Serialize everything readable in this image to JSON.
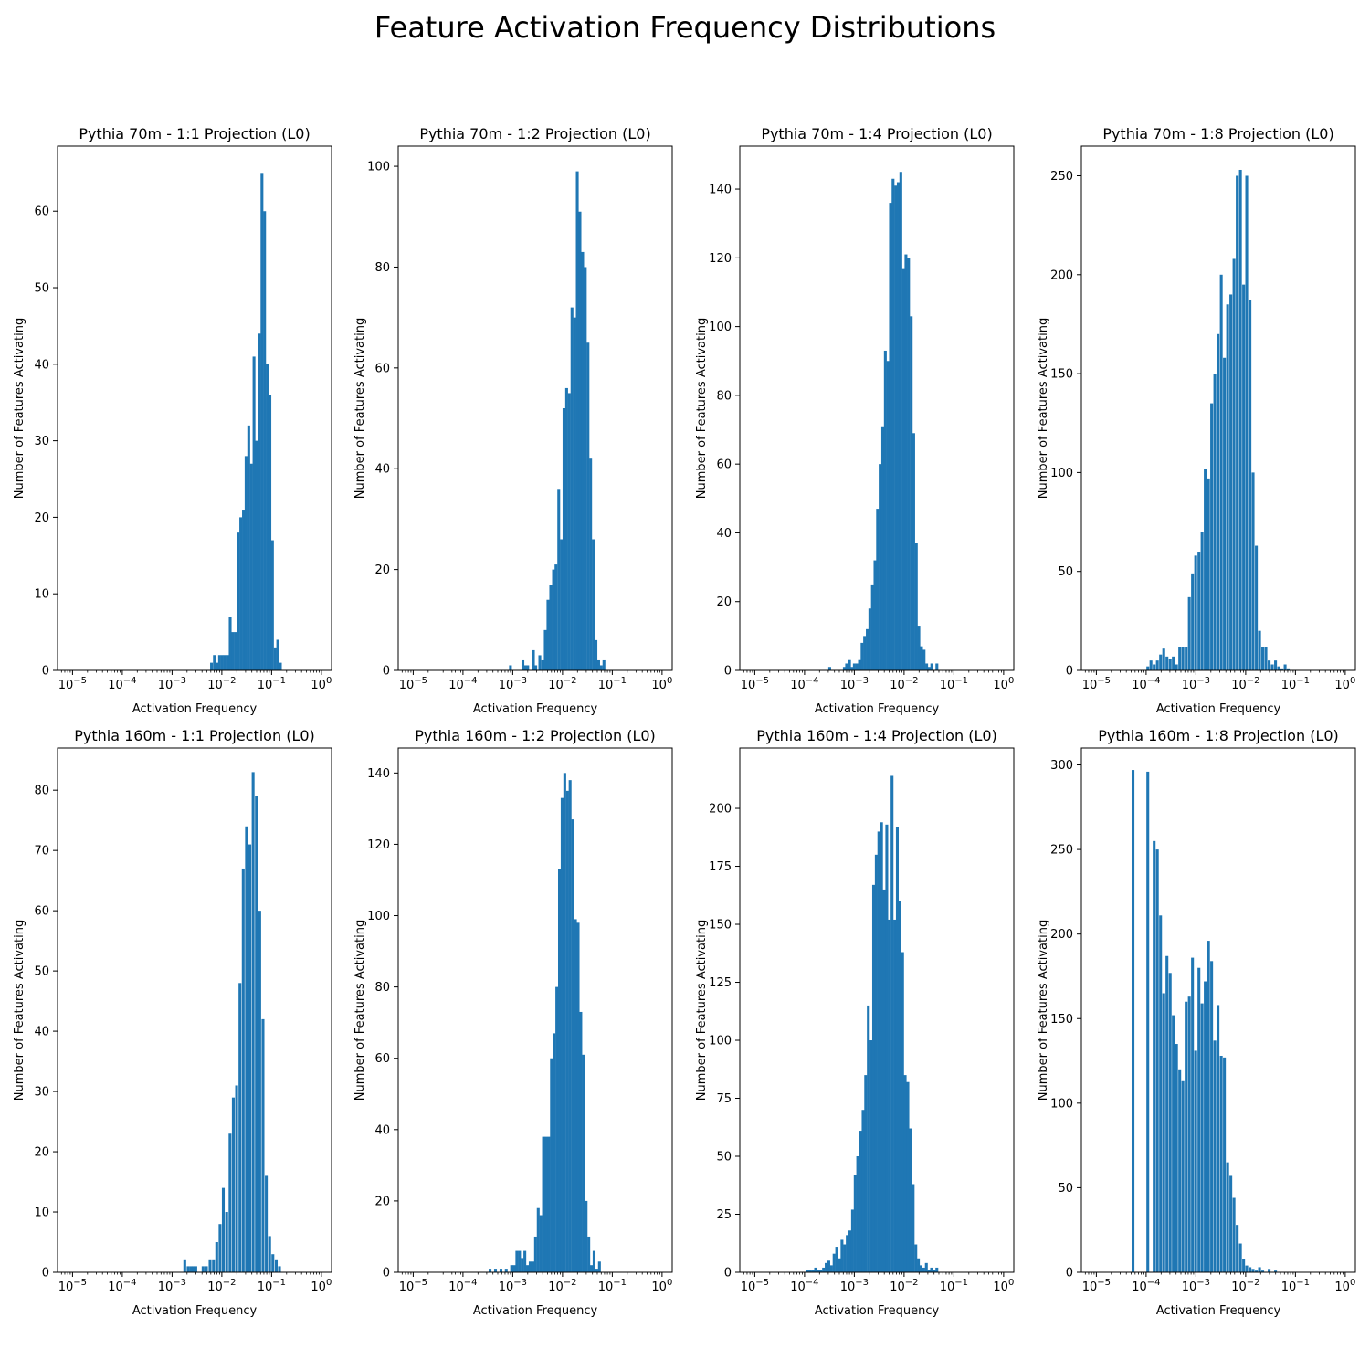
{
  "suptitle": "Feature Activation Frequency Distributions",
  "colors": {
    "bar": "#1f77b4",
    "axes": "#000000"
  },
  "chart_data": [
    {
      "type": "bar",
      "title": "Pythia 70m - 1:1 Projection (L0)",
      "xlabel": "Activation Frequency",
      "ylabel": "Number of Features Activating",
      "xscale": "log",
      "xlim": [
        5e-06,
        1.6
      ],
      "ylim": [
        0,
        68.5
      ],
      "yticks": [
        0,
        10,
        20,
        30,
        40,
        50,
        60
      ],
      "bins": [
        [
          0.0062,
          1
        ],
        [
          0.0071,
          2
        ],
        [
          0.008,
          1
        ],
        [
          0.009,
          2
        ],
        [
          0.0102,
          2
        ],
        [
          0.0115,
          2
        ],
        [
          0.013,
          2
        ],
        [
          0.0147,
          7
        ],
        [
          0.0166,
          5
        ],
        [
          0.0188,
          5
        ],
        [
          0.0212,
          18
        ],
        [
          0.024,
          20
        ],
        [
          0.0272,
          21
        ],
        [
          0.0307,
          28
        ],
        [
          0.0347,
          32
        ],
        [
          0.0392,
          27
        ],
        [
          0.0443,
          41
        ],
        [
          0.05,
          30
        ],
        [
          0.0566,
          44
        ],
        [
          0.064,
          65
        ],
        [
          0.0723,
          60
        ],
        [
          0.0817,
          40
        ],
        [
          0.0924,
          36
        ],
        [
          0.104,
          17
        ],
        [
          0.118,
          3
        ],
        [
          0.133,
          4
        ],
        [
          0.15,
          1
        ]
      ]
    },
    {
      "type": "bar",
      "title": "Pythia 70m - 1:2 Projection (L0)",
      "xlabel": "Activation Frequency",
      "ylabel": "Number of Features Activating",
      "xscale": "log",
      "xlim": [
        5e-06,
        1.6
      ],
      "ylim": [
        0,
        104
      ],
      "yticks": [
        0,
        20,
        40,
        60,
        80,
        100
      ],
      "bins": [
        [
          0.0009,
          1
        ],
        [
          0.0016,
          2
        ],
        [
          0.0018,
          1
        ],
        [
          0.002,
          1
        ],
        [
          0.0026,
          4
        ],
        [
          0.0029,
          1
        ],
        [
          0.0035,
          3
        ],
        [
          0.004,
          2
        ],
        [
          0.0045,
          8
        ],
        [
          0.0051,
          14
        ],
        [
          0.0058,
          17
        ],
        [
          0.0066,
          20
        ],
        [
          0.0074,
          21
        ],
        [
          0.0084,
          36
        ],
        [
          0.0095,
          26
        ],
        [
          0.0107,
          52
        ],
        [
          0.0121,
          56
        ],
        [
          0.0137,
          55
        ],
        [
          0.0155,
          72
        ],
        [
          0.0175,
          70
        ],
        [
          0.0198,
          99
        ],
        [
          0.0224,
          91
        ],
        [
          0.0254,
          83
        ],
        [
          0.0287,
          80
        ],
        [
          0.0325,
          65
        ],
        [
          0.0367,
          42
        ],
        [
          0.0416,
          26
        ],
        [
          0.047,
          6
        ],
        [
          0.0532,
          2
        ],
        [
          0.06,
          1
        ],
        [
          0.068,
          2
        ]
      ]
    },
    {
      "type": "bar",
      "title": "Pythia 70m - 1:4 Projection (L0)",
      "xlabel": "Activation Frequency",
      "ylabel": "Number of Features Activating",
      "xscale": "log",
      "xlim": [
        5e-06,
        1.6
      ],
      "ylim": [
        0,
        152.5
      ],
      "yticks": [
        0,
        20,
        40,
        60,
        80,
        100,
        120,
        140
      ],
      "bins": [
        [
          0.00032,
          1
        ],
        [
          0.00063,
          1
        ],
        [
          0.0007,
          2
        ],
        [
          0.0008,
          3
        ],
        [
          0.0009,
          1
        ],
        [
          0.001,
          2
        ],
        [
          0.00113,
          2
        ],
        [
          0.00127,
          3
        ],
        [
          0.00143,
          8
        ],
        [
          0.00161,
          10
        ],
        [
          0.00182,
          12
        ],
        [
          0.00205,
          18
        ],
        [
          0.00231,
          25
        ],
        [
          0.0026,
          32
        ],
        [
          0.00293,
          47
        ],
        [
          0.0033,
          60
        ],
        [
          0.00372,
          71
        ],
        [
          0.0042,
          93
        ],
        [
          0.00473,
          90
        ],
        [
          0.00533,
          136
        ],
        [
          0.006,
          143
        ],
        [
          0.00677,
          141
        ],
        [
          0.00763,
          142
        ],
        [
          0.0086,
          145
        ],
        [
          0.0097,
          117
        ],
        [
          0.0109,
          121
        ],
        [
          0.0123,
          120
        ],
        [
          0.0139,
          103
        ],
        [
          0.0156,
          69
        ],
        [
          0.0176,
          37
        ],
        [
          0.0198,
          13
        ],
        [
          0.0224,
          7
        ],
        [
          0.0252,
          6
        ],
        [
          0.0284,
          2
        ],
        [
          0.0321,
          1
        ],
        [
          0.036,
          2
        ],
        [
          0.0456,
          2
        ]
      ]
    },
    {
      "type": "bar",
      "title": "Pythia 70m - 1:8 Projection (L0)",
      "xlabel": "Activation Frequency",
      "ylabel": "Number of Features Activating",
      "xscale": "log",
      "xlim": [
        5e-06,
        1.6
      ],
      "ylim": [
        0,
        265
      ],
      "yticks": [
        0,
        50,
        100,
        150,
        200,
        250
      ],
      "bins": [
        [
          0.000108,
          2
        ],
        [
          0.000125,
          5
        ],
        [
          0.000145,
          3
        ],
        [
          0.000168,
          5
        ],
        [
          0.000195,
          8
        ],
        [
          0.000226,
          11
        ],
        [
          0.000262,
          7
        ],
        [
          0.000304,
          6
        ],
        [
          0.000352,
          7
        ],
        [
          0.000408,
          3
        ],
        [
          0.000473,
          12
        ],
        [
          0.000548,
          12
        ],
        [
          0.000636,
          12
        ],
        [
          0.000737,
          37
        ],
        [
          0.000854,
          49
        ],
        [
          0.00099,
          58
        ],
        [
          0.00115,
          60
        ],
        [
          0.00133,
          70
        ],
        [
          0.00154,
          102
        ],
        [
          0.00179,
          97
        ],
        [
          0.00207,
          135
        ],
        [
          0.0024,
          150
        ],
        [
          0.00278,
          170
        ],
        [
          0.00323,
          200
        ],
        [
          0.00374,
          158
        ],
        [
          0.00434,
          185
        ],
        [
          0.00503,
          190
        ],
        [
          0.00583,
          208
        ],
        [
          0.00676,
          250
        ],
        [
          0.00784,
          253
        ],
        [
          0.00909,
          195
        ],
        [
          0.0105,
          250
        ],
        [
          0.0122,
          187
        ],
        [
          0.0141,
          100
        ],
        [
          0.0164,
          63
        ],
        [
          0.019,
          20
        ],
        [
          0.022,
          12
        ],
        [
          0.0255,
          12
        ],
        [
          0.0296,
          5
        ],
        [
          0.0343,
          3
        ],
        [
          0.0398,
          5
        ],
        [
          0.0461,
          2
        ],
        [
          0.0534,
          1
        ],
        [
          0.062,
          3
        ],
        [
          0.0718,
          1
        ]
      ]
    },
    {
      "type": "bar",
      "title": "Pythia 160m - 1:1 Projection (L0)",
      "xlabel": "Activation Frequency",
      "ylabel": "Number of Features Activating",
      "xscale": "log",
      "xlim": [
        5e-06,
        1.6
      ],
      "ylim": [
        0,
        87
      ],
      "yticks": [
        0,
        10,
        20,
        30,
        40,
        50,
        60,
        70,
        80
      ],
      "bins": [
        [
          0.0018,
          2
        ],
        [
          0.0021,
          1
        ],
        [
          0.0024,
          1
        ],
        [
          0.0027,
          1
        ],
        [
          0.003,
          1
        ],
        [
          0.0042,
          1
        ],
        [
          0.0049,
          1
        ],
        [
          0.0058,
          2
        ],
        [
          0.0068,
          2
        ],
        [
          0.0079,
          5
        ],
        [
          0.0092,
          8
        ],
        [
          0.0107,
          14
        ],
        [
          0.0125,
          10
        ],
        [
          0.0146,
          23
        ],
        [
          0.017,
          29
        ],
        [
          0.0198,
          31
        ],
        [
          0.0231,
          48
        ],
        [
          0.0269,
          67
        ],
        [
          0.0313,
          74
        ],
        [
          0.0365,
          71
        ],
        [
          0.0425,
          83
        ],
        [
          0.0495,
          79
        ],
        [
          0.0577,
          60
        ],
        [
          0.0672,
          42
        ],
        [
          0.0783,
          16
        ],
        [
          0.0912,
          6
        ],
        [
          0.106,
          3
        ],
        [
          0.124,
          2
        ],
        [
          0.144,
          1
        ]
      ]
    },
    {
      "type": "bar",
      "title": "Pythia 160m - 1:2 Projection (L0)",
      "xlabel": "Activation Frequency",
      "ylabel": "Number of Features Activating",
      "xscale": "log",
      "xlim": [
        5e-06,
        1.6
      ],
      "ylim": [
        0,
        147
      ],
      "yticks": [
        0,
        20,
        40,
        60,
        80,
        100,
        120,
        140
      ],
      "bins": [
        [
          0.00035,
          1
        ],
        [
          0.00045,
          1
        ],
        [
          0.00058,
          1
        ],
        [
          0.00074,
          1
        ],
        [
          0.00095,
          2
        ],
        [
          0.00107,
          2
        ],
        [
          0.00121,
          6
        ],
        [
          0.00137,
          6
        ],
        [
          0.00155,
          4
        ],
        [
          0.00175,
          6
        ],
        [
          0.00198,
          2
        ],
        [
          0.00224,
          3
        ],
        [
          0.00254,
          3
        ],
        [
          0.00287,
          10
        ],
        [
          0.00325,
          18
        ],
        [
          0.00367,
          16
        ],
        [
          0.00415,
          38
        ],
        [
          0.00469,
          38
        ],
        [
          0.00531,
          38
        ],
        [
          0.006,
          60
        ],
        [
          0.00679,
          67
        ],
        [
          0.00768,
          80
        ],
        [
          0.00868,
          113
        ],
        [
          0.00982,
          133
        ],
        [
          0.0111,
          140
        ],
        [
          0.0126,
          135
        ],
        [
          0.0142,
          138
        ],
        [
          0.0161,
          127
        ],
        [
          0.0182,
          99
        ],
        [
          0.0206,
          98
        ],
        [
          0.0233,
          73
        ],
        [
          0.0263,
          61
        ],
        [
          0.0298,
          20
        ],
        [
          0.0337,
          10
        ],
        [
          0.0381,
          2
        ],
        [
          0.0431,
          6
        ],
        [
          0.0488,
          1
        ],
        [
          0.0552,
          3
        ]
      ]
    },
    {
      "type": "bar",
      "title": "Pythia 160m - 1:4 Projection (L0)",
      "xlabel": "Activation Frequency",
      "ylabel": "Number of Features Activating",
      "xscale": "log",
      "xlim": [
        5e-06,
        1.6
      ],
      "ylim": [
        0,
        226
      ],
      "yticks": [
        0,
        25,
        50,
        75,
        100,
        125,
        150,
        175,
        200
      ],
      "bins": [
        [
          0.000116,
          1
        ],
        [
          0.000131,
          1
        ],
        [
          0.000148,
          1
        ],
        [
          0.000167,
          2
        ],
        [
          0.000189,
          1
        ],
        [
          0.000213,
          1
        ],
        [
          0.000241,
          2
        ],
        [
          0.000272,
          4
        ],
        [
          0.000307,
          5
        ],
        [
          0.000347,
          3
        ],
        [
          0.000392,
          8
        ],
        [
          0.000443,
          11
        ],
        [
          0.0005,
          6
        ],
        [
          0.000565,
          14
        ],
        [
          0.000638,
          12
        ],
        [
          0.000721,
          16
        ],
        [
          0.000814,
          18
        ],
        [
          0.00092,
          27
        ],
        [
          0.00104,
          42
        ],
        [
          0.00117,
          50
        ],
        [
          0.00133,
          61
        ],
        [
          0.0015,
          70
        ],
        [
          0.00169,
          85
        ],
        [
          0.00191,
          115
        ],
        [
          0.00216,
          100
        ],
        [
          0.00244,
          167
        ],
        [
          0.00276,
          180
        ],
        [
          0.00311,
          190
        ],
        [
          0.00352,
          194
        ],
        [
          0.00397,
          165
        ],
        [
          0.00449,
          193
        ],
        [
          0.00507,
          152
        ],
        [
          0.00573,
          214
        ],
        [
          0.00647,
          152
        ],
        [
          0.00731,
          192
        ],
        [
          0.00826,
          160
        ],
        [
          0.00933,
          138
        ],
        [
          0.0105,
          85
        ],
        [
          0.0119,
          82
        ],
        [
          0.0135,
          62
        ],
        [
          0.0152,
          38
        ],
        [
          0.0172,
          12
        ],
        [
          0.0194,
          6
        ],
        [
          0.0219,
          3
        ],
        [
          0.0248,
          2
        ],
        [
          0.028,
          4
        ],
        [
          0.0316,
          1
        ],
        [
          0.0357,
          2
        ],
        [
          0.0403,
          1
        ],
        [
          0.0455,
          2
        ]
      ]
    },
    {
      "type": "bar",
      "title": "Pythia 160m - 1:8 Projection (L0)",
      "xlabel": "Activation Frequency",
      "ylabel": "Number of Features Activating",
      "xscale": "log",
      "xlim": [
        5e-06,
        1.6
      ],
      "ylim": [
        0,
        310
      ],
      "yticks": [
        0,
        50,
        100,
        150,
        200,
        250,
        300
      ],
      "bins": [
        [
          5.45e-05,
          297
        ],
        [
          0.000108,
          296
        ],
        [
          0.000145,
          255
        ],
        [
          0.000168,
          250
        ],
        [
          0.000195,
          211
        ],
        [
          0.000226,
          165
        ],
        [
          0.000262,
          187
        ],
        [
          0.000304,
          177
        ],
        [
          0.000352,
          152
        ],
        [
          0.000408,
          135
        ],
        [
          0.000473,
          120
        ],
        [
          0.000548,
          113
        ],
        [
          0.000636,
          160
        ],
        [
          0.000737,
          163
        ],
        [
          0.000854,
          186
        ],
        [
          0.00099,
          131
        ],
        [
          0.00115,
          180
        ],
        [
          0.00133,
          159
        ],
        [
          0.00154,
          172
        ],
        [
          0.00179,
          196
        ],
        [
          0.00207,
          184
        ],
        [
          0.0024,
          137
        ],
        [
          0.00278,
          158
        ],
        [
          0.00323,
          128
        ],
        [
          0.00374,
          127
        ],
        [
          0.00434,
          65
        ],
        [
          0.00503,
          57
        ],
        [
          0.00583,
          44
        ],
        [
          0.00676,
          28
        ],
        [
          0.00784,
          17
        ],
        [
          0.00909,
          8
        ],
        [
          0.0105,
          4
        ],
        [
          0.0122,
          3
        ],
        [
          0.0141,
          2
        ],
        [
          0.0164,
          1
        ],
        [
          0.019,
          3
        ],
        [
          0.022,
          1
        ],
        [
          0.0296,
          2
        ],
        [
          0.0398,
          1
        ]
      ]
    }
  ]
}
